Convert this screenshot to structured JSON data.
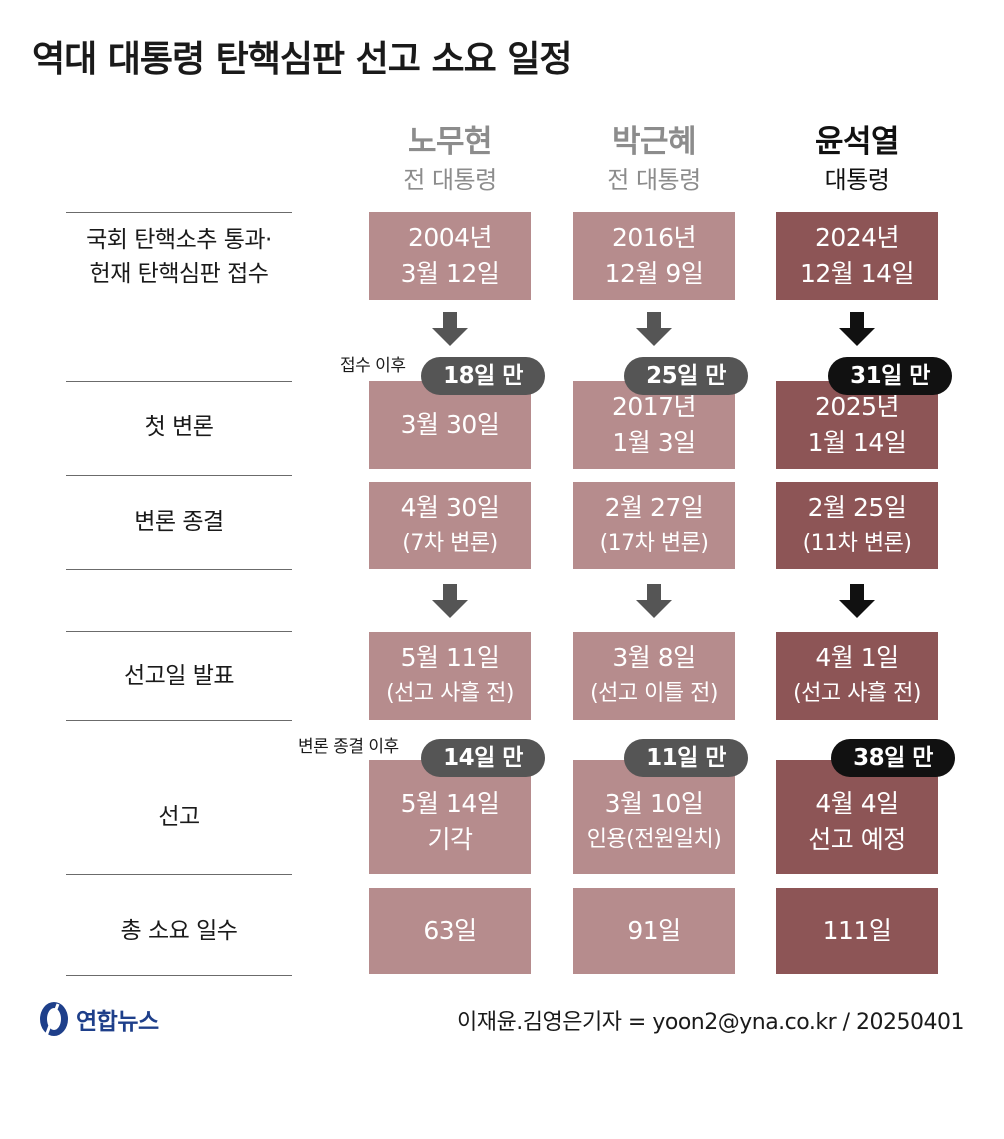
{
  "title": "역대 대통령 탄핵심판 선고 소요 일정",
  "columns": [
    {
      "name": "노무현",
      "sub": "전 대통령"
    },
    {
      "name": "박근혜",
      "sub": "전 대통령"
    },
    {
      "name": "윤석열",
      "sub": "대통령"
    }
  ],
  "rows": {
    "receipt": {
      "label_line1": "국회 탄핵소추 통과·",
      "label_line2": "헌재 탄핵심판 접수"
    },
    "first_hearing": {
      "label": "첫 변론"
    },
    "hearing_end": {
      "label": "변론 종결"
    },
    "announce": {
      "label": "선고일 발표"
    },
    "verdict": {
      "label": "선고"
    },
    "total": {
      "label": "총 소요 일수"
    }
  },
  "cells": {
    "receipt": [
      {
        "line1": "2004년",
        "line2": "3월 12일"
      },
      {
        "line1": "2016년",
        "line2": "12월 9일"
      },
      {
        "line1": "2024년",
        "line2": "12월 14일"
      }
    ],
    "first_hearing": [
      {
        "line1": "3월 30일",
        "line2": ""
      },
      {
        "line1": "2017년",
        "line2": "1월 3일"
      },
      {
        "line1": "2025년",
        "line2": "1월 14일"
      }
    ],
    "hearing_end": [
      {
        "line1": "4월 30일",
        "line2": "(7차 변론)"
      },
      {
        "line1": "2월 27일",
        "line2": "(17차 변론)"
      },
      {
        "line1": "2월 25일",
        "line2": "(11차 변론)"
      }
    ],
    "announce": [
      {
        "line1": "5월 11일",
        "line2": "(선고 사흘 전)"
      },
      {
        "line1": "3월 8일",
        "line2": "(선고 이틀 전)"
      },
      {
        "line1": "4월 1일",
        "line2": "(선고 사흘 전)"
      }
    ],
    "verdict": [
      {
        "line1": "5월 14일",
        "line2": "기각"
      },
      {
        "line1": "3월 10일",
        "line2": "인용(전원일치)"
      },
      {
        "line1": "4월 4일",
        "line2": "선고 예정"
      }
    ],
    "total": [
      "63일",
      "91일",
      "111일"
    ]
  },
  "pills_after_receipt": [
    "18일 만",
    "25일 만",
    "31일 만"
  ],
  "pills_after_hearing_end": [
    "14일 만",
    "11일 만",
    "38일 만"
  ],
  "notes": {
    "after_receipt": "접수 이후",
    "after_hearing_end": "변론 종결 이후"
  },
  "footer": {
    "logo": "연합뉴스",
    "credit": "이재윤.김영은기자 = yoon2@yna.co.kr / 20250401"
  },
  "colors": {
    "past_cell": "#b68c8d",
    "current_cell": "#8d5556",
    "pill_past": "#555555",
    "pill_current": "#111111",
    "logo_blue": "#1e3f8a"
  }
}
